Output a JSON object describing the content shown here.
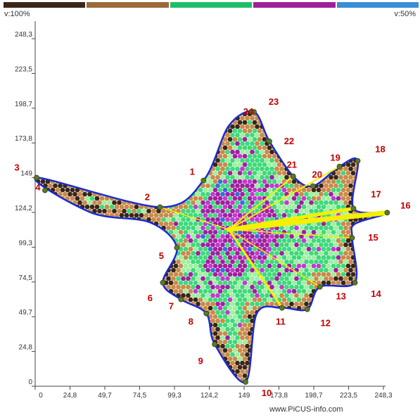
{
  "legend_colors": [
    "#3a2618",
    "#9a6b3a",
    "#1fbf6a",
    "#a0209a",
    "#3a8ed6"
  ],
  "left_label": "v:100%",
  "right_label": "v:50%",
  "watermark": "www.PiCUS-info.com",
  "colors": {
    "outline": "#1a2bcf",
    "point": "#5a7a2a",
    "ray": "#f5f000",
    "label": "#c00000",
    "green": "#3fd97a",
    "light_green": "#9ef0a0",
    "purple": "#a020a0",
    "magenta": "#c23ad0",
    "brown": "#c98a4a",
    "dark_brown": "#3a2618",
    "blue": "#3a6ed6"
  },
  "chart_data": {
    "type": "scatter",
    "xlim": [
      0,
      248.3
    ],
    "ylim": [
      0,
      248.3
    ],
    "x_ticks": [
      "0",
      "24,8",
      "49,7",
      "74,5",
      "99,3",
      "124,2",
      "149",
      "173,8",
      "198,7",
      "223,5",
      "248,3"
    ],
    "y_ticks": [
      "0",
      "24,8",
      "49,7",
      "74,5",
      "99,3",
      "124,2",
      "149",
      "173,8",
      "198,7",
      "223,5",
      "248,3"
    ],
    "center": [
      138,
      112
    ],
    "points": [
      {
        "label": "1",
        "x": 120,
        "y": 147
      },
      {
        "label": "2",
        "x": 89,
        "y": 128
      },
      {
        "label": "3",
        "x": 1,
        "y": 149
      },
      {
        "label": "4",
        "x": 7,
        "y": 140
      },
      {
        "label": "5",
        "x": 101,
        "y": 99
      },
      {
        "label": "6",
        "x": 91,
        "y": 74
      },
      {
        "label": "7",
        "x": 104,
        "y": 62
      },
      {
        "label": "8",
        "x": 122,
        "y": 52
      },
      {
        "label": "9",
        "x": 128,
        "y": 30
      },
      {
        "label": "10",
        "x": 150,
        "y": 3
      },
      {
        "label": "11",
        "x": 176,
        "y": 56
      },
      {
        "label": "12",
        "x": 194,
        "y": 55
      },
      {
        "label": "13",
        "x": 203,
        "y": 71
      },
      {
        "label": "14",
        "x": 228,
        "y": 74
      },
      {
        "label": "15",
        "x": 226,
        "y": 106
      },
      {
        "label": "16",
        "x": 251,
        "y": 124
      },
      {
        "label": "17",
        "x": 227,
        "y": 127
      },
      {
        "label": "18",
        "x": 230,
        "y": 161
      },
      {
        "label": "19",
        "x": 217,
        "y": 157
      },
      {
        "label": "20",
        "x": 198,
        "y": 143
      },
      {
        "label": "21",
        "x": 184,
        "y": 150
      },
      {
        "label": "22",
        "x": 167,
        "y": 175
      },
      {
        "label": "23",
        "x": 156,
        "y": 196
      },
      {
        "label": "24",
        "x": 154,
        "y": 196
      }
    ]
  }
}
